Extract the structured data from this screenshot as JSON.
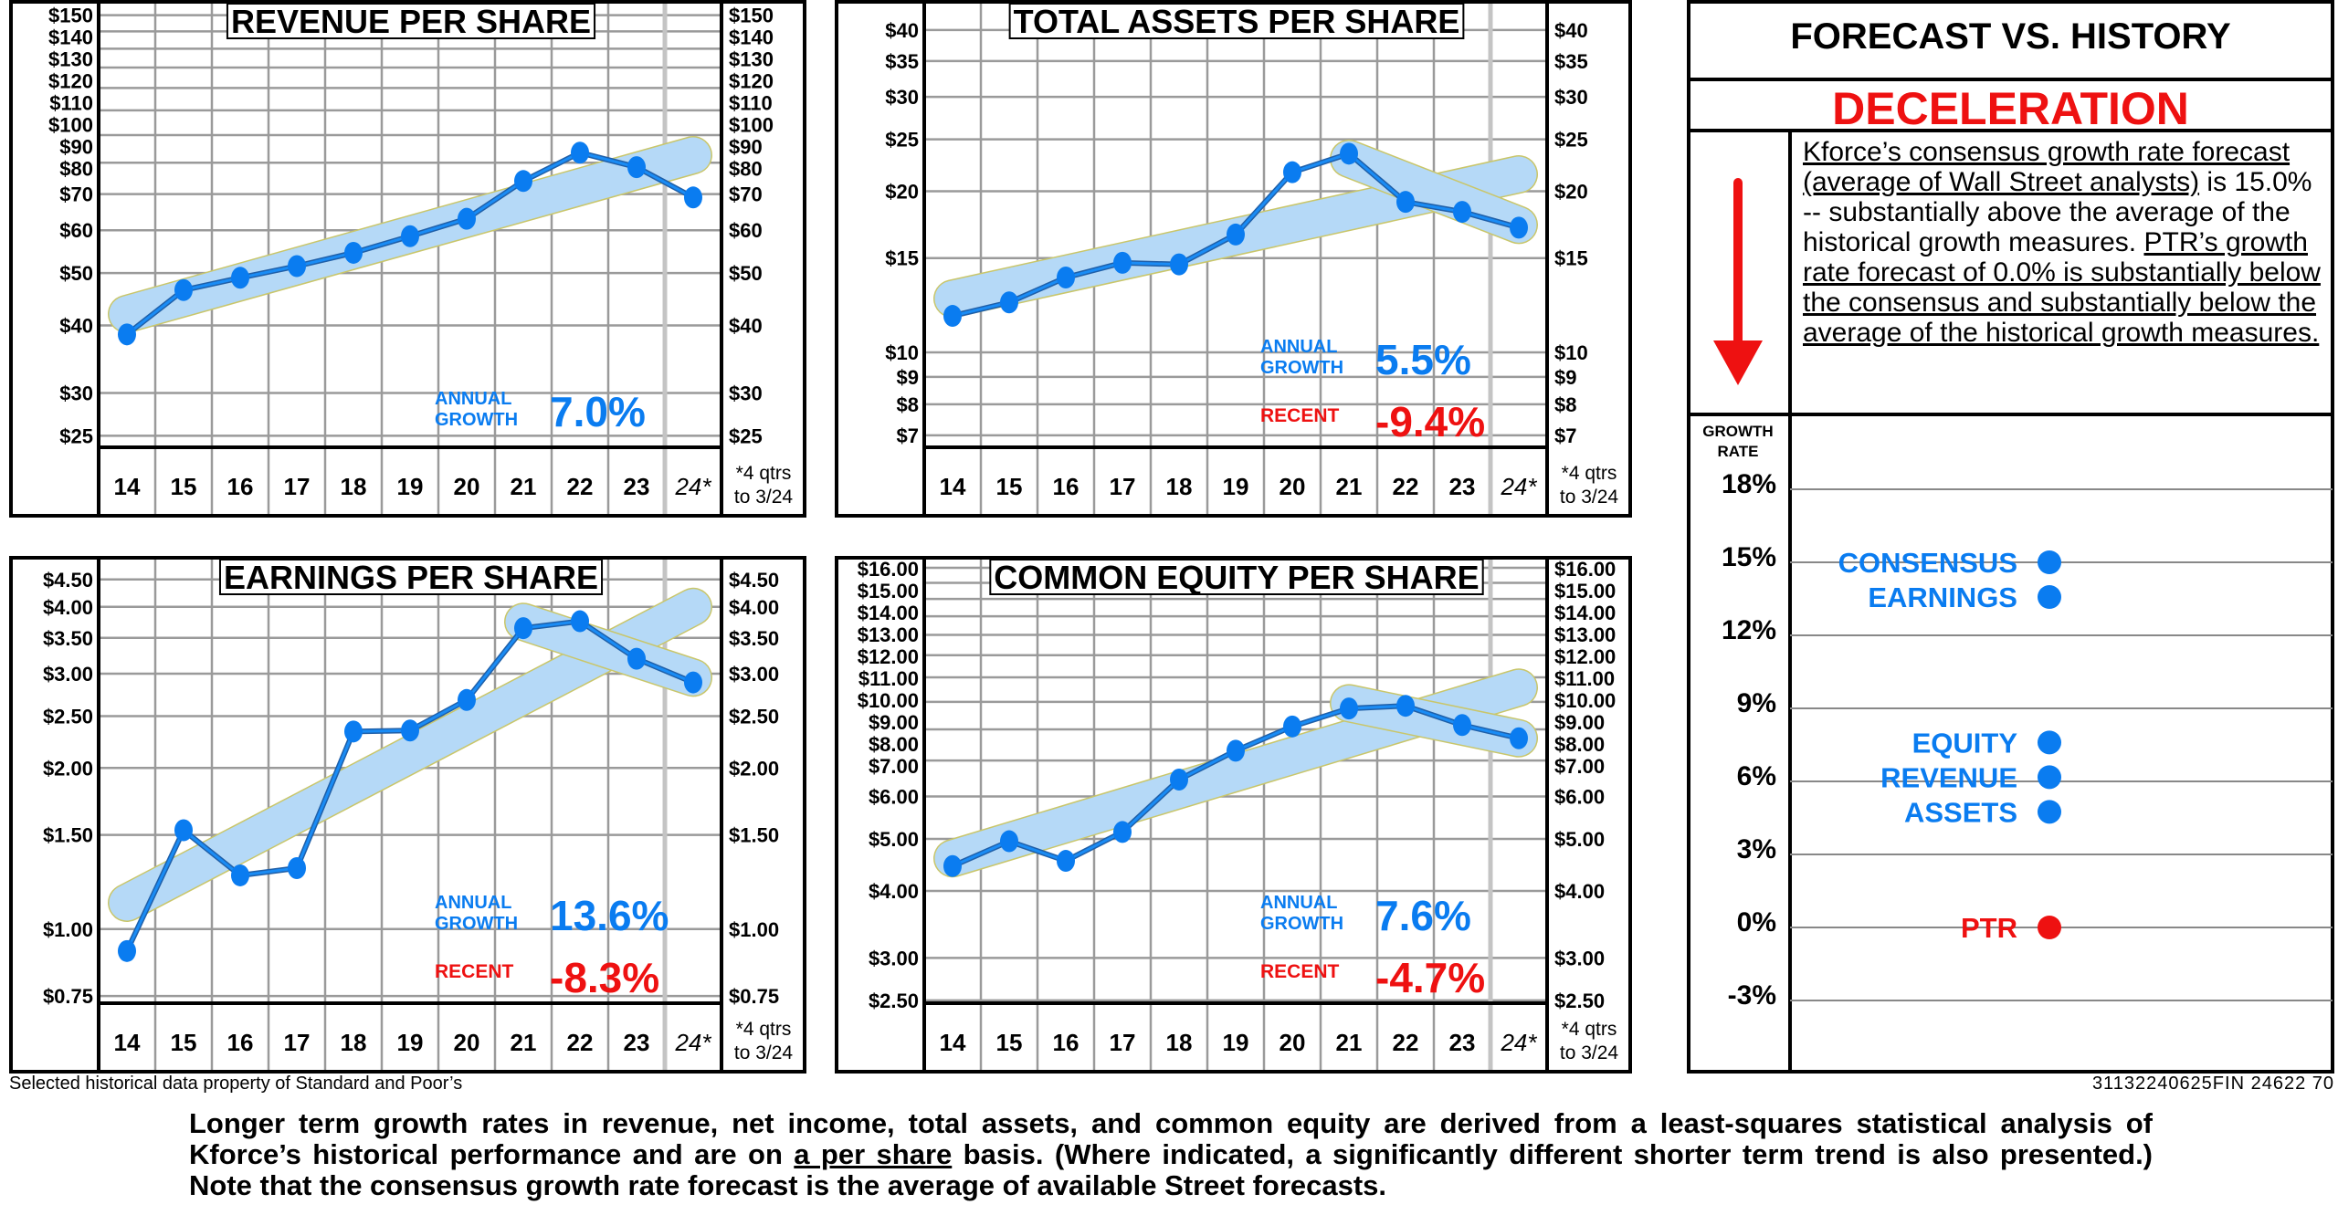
{
  "colors": {
    "blue": "#0a7cf0",
    "red": "#ee1111",
    "band": "#b5d9f7",
    "band_edge": "#c9c66a",
    "grid": "#9a9a9a"
  },
  "chart_data": [
    {
      "id": "revenue",
      "type": "line",
      "title": "REVENUE PER SHARE",
      "scale": "log",
      "ylim": [
        23.8,
        160
      ],
      "categories": [
        "14",
        "15",
        "16",
        "17",
        "18",
        "19",
        "20",
        "21",
        "22",
        "23",
        "24*"
      ],
      "values": [
        38.5,
        46.5,
        49,
        51.5,
        54.5,
        58.5,
        63,
        74,
        83.5,
        78.5,
        69
      ],
      "yticks": [
        25,
        30,
        40,
        50,
        60,
        70,
        80,
        90,
        100,
        110,
        120,
        130,
        140,
        150
      ],
      "ytick_labels": [
        "$25",
        "$30",
        "$40",
        "$50",
        "$60",
        "$70",
        "$80",
        "$90",
        "$100",
        "$110",
        "$120",
        "$130",
        "$140",
        "$150"
      ],
      "trend": {
        "from": "14",
        "to": "24*",
        "start": 42,
        "end": 82.6
      },
      "annual_label": [
        "ANNUAL",
        "GROWTH"
      ],
      "annual_growth": "7.0%",
      "footnote": [
        "*4 qtrs",
        "to 3/24"
      ]
    },
    {
      "id": "assets",
      "type": "line",
      "title": "TOTAL ASSETS PER SHARE",
      "scale": "log",
      "ylim": [
        6.65,
        45.5
      ],
      "categories": [
        "14",
        "15",
        "16",
        "17",
        "18",
        "19",
        "20",
        "21",
        "22",
        "23",
        "24*"
      ],
      "values": [
        11.7,
        12.4,
        13.8,
        14.7,
        14.6,
        16.6,
        21.7,
        23.5,
        19.1,
        18.3,
        17.1
      ],
      "yticks": [
        7,
        8,
        9,
        10,
        15,
        20,
        25,
        30,
        35,
        40
      ],
      "ytick_labels": [
        "$7",
        "$8",
        "$9",
        "$10",
        "$15",
        "$20",
        "$25",
        "$30",
        "$35",
        "$40"
      ],
      "trend": {
        "from": "14",
        "to": "24*",
        "start": 12.6,
        "end": 21.5
      },
      "recent_trend": {
        "from": "21",
        "to": "24*",
        "start": 23.0,
        "end": 17.3
      },
      "annual_label": [
        "ANNUAL",
        "GROWTH"
      ],
      "annual_growth": "5.5%",
      "recent_label": "RECENT",
      "recent_growth": "-9.4%",
      "footnote": [
        "*4 qtrs",
        "to 3/24"
      ]
    },
    {
      "id": "earnings",
      "type": "line",
      "title": "EARNINGS PER SHARE",
      "scale": "log",
      "ylim": [
        0.727,
        4.98
      ],
      "categories": [
        "14",
        "15",
        "16",
        "17",
        "18",
        "19",
        "20",
        "21",
        "22",
        "23",
        "24*"
      ],
      "values": [
        0.91,
        1.53,
        1.26,
        1.3,
        2.34,
        2.35,
        2.68,
        3.65,
        3.76,
        3.2,
        2.89
      ],
      "yticks": [
        0.75,
        1.0,
        1.5,
        2.0,
        2.5,
        3.0,
        3.5,
        4.0,
        4.5
      ],
      "ytick_labels": [
        "$0.75",
        "$1.00",
        "$1.50",
        "$2.00",
        "$2.50",
        "$3.00",
        "$3.50",
        "$4.00",
        "$4.50"
      ],
      "trend": {
        "from": "14",
        "to": "24*",
        "start": 1.12,
        "end": 4.0
      },
      "recent_trend": {
        "from": "21",
        "to": "24*",
        "start": 3.75,
        "end": 2.95
      },
      "annual_label": [
        "ANNUAL",
        "GROWTH"
      ],
      "annual_growth": "13.6%",
      "recent_label": "RECENT",
      "recent_growth": "-8.3%",
      "footnote": [
        "*4 qtrs",
        "to 3/24"
      ]
    },
    {
      "id": "equity",
      "type": "line",
      "title": "COMMON EQUITY PER SHARE",
      "scale": "log",
      "ylim": [
        2.47,
        16.84
      ],
      "categories": [
        "14",
        "15",
        "16",
        "17",
        "18",
        "19",
        "20",
        "21",
        "22",
        "23",
        "24*"
      ],
      "values": [
        4.45,
        4.95,
        4.55,
        5.15,
        6.45,
        7.3,
        8.1,
        8.75,
        8.85,
        8.15,
        7.7
      ],
      "yticks": [
        2.5,
        3,
        4,
        5,
        6,
        7,
        8,
        9,
        10,
        11,
        12,
        13,
        14,
        15,
        16
      ],
      "ytick_labels": [
        "$2.50",
        "$3.00",
        "$4.00",
        "$5.00",
        "$6.00",
        "$7.00",
        "$8.00",
        "$9.00",
        "$10.00",
        "$11.00",
        "$12.00",
        "$13.00",
        "$14.00",
        "$15.00",
        "$16.00"
      ],
      "trend": {
        "from": "14",
        "to": "24*",
        "start": 4.6,
        "end": 9.57
      },
      "recent_trend": {
        "from": "21",
        "to": "24*",
        "start": 8.95,
        "end": 7.7
      },
      "annual_label": [
        "ANNUAL",
        "GROWTH"
      ],
      "annual_growth": "7.6%",
      "recent_label": "RECENT",
      "recent_growth": "-4.7%",
      "footnote": [
        "*4 qtrs",
        "to 3/24"
      ]
    },
    {
      "id": "forecast",
      "type": "scatter",
      "ylabel": [
        "GROWTH",
        "RATE"
      ],
      "yticks": [
        18,
        15,
        12,
        9,
        6,
        3,
        0,
        -3
      ],
      "ytick_labels": [
        "18%",
        "15%",
        "12%",
        "9%",
        "6%",
        "3%",
        "0%",
        "-3%"
      ],
      "ylim": [
        -5.8,
        21
      ],
      "points": [
        {
          "label": "CONSENSUS",
          "value": 15.0,
          "color": "#0a7cf0"
        },
        {
          "label": "EARNINGS",
          "value": 13.6,
          "color": "#0a7cf0"
        },
        {
          "label": "EQUITY",
          "value": 7.6,
          "color": "#0a7cf0"
        },
        {
          "label": "REVENUE",
          "value": 7.0,
          "color": "#0a7cf0"
        },
        {
          "label": "ASSETS",
          "value": 5.5,
          "color": "#0a7cf0"
        },
        {
          "label": "PTR",
          "value": 0.0,
          "color": "#ee1111"
        }
      ]
    }
  ],
  "forecast": {
    "title": "FORECAST VS. HISTORY",
    "verdict": "DECELERATION",
    "text_part1": "Kforce’s consensus growth rate forecast (average of Wall Street analysts)",
    "text_part2": " is 15.0% --   substantially above the average of the historical growth measures. ",
    "text_part3": "PTR’s growth rate forecast of 0.0% is substantially below the consensus and substantially below the average of the historical growth measures."
  },
  "footer": {
    "credit": "Selected historical data property of Standard and Poor’s",
    "code": "31132240625FIN 24622  70",
    "note_part1": "Longer term growth rates in revenue, net income, total assets, and common equity are derived from a least-squares  statistical analysis of Kforce’s historical performance and are on ",
    "note_underlined": "a per share",
    "note_part2": " basis. (Where indicated, a significantly different shorter term trend is also presented.) Note that the consensus growth rate forecast is the average of available Street forecasts."
  }
}
